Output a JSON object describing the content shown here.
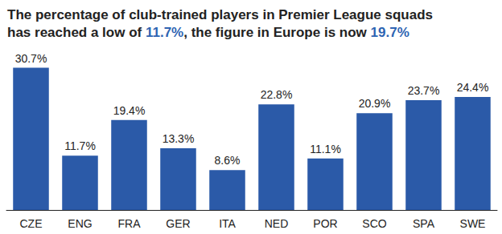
{
  "chart_data": {
    "type": "bar",
    "title": "The percentage of club-trained players in Premier League squads has reached a low of 11.7%, the figure in Europe is now 19.7%",
    "categories": [
      "CZE",
      "ENG",
      "FRA",
      "GER",
      "ITA",
      "NED",
      "POR",
      "SCO",
      "SPA",
      "SWE"
    ],
    "values": [
      30.7,
      11.7,
      19.4,
      13.3,
      8.6,
      22.8,
      11.1,
      20.9,
      23.7,
      24.4
    ],
    "value_labels": [
      "30.7%",
      "11.7%",
      "19.4%",
      "13.3%",
      "8.6%",
      "22.8%",
      "11.1%",
      "20.9%",
      "23.7%",
      "24.4%"
    ],
    "color": "#2b5aa8",
    "ylim": [
      0,
      32
    ],
    "grid": false,
    "data_labels": true,
    "tick_labels": "x"
  }
}
